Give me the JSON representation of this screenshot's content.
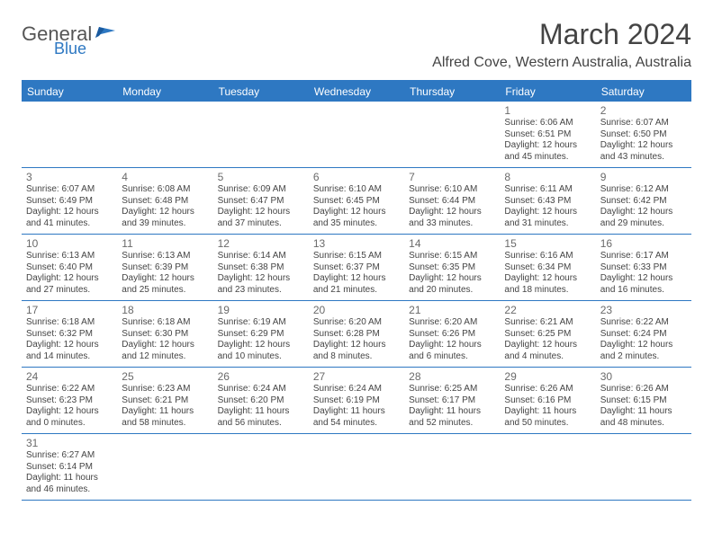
{
  "logo": {
    "name": "General",
    "sub": "Blue"
  },
  "title": "March 2024",
  "location": "Alfred Cove, Western Australia, Australia",
  "colors": {
    "accent": "#2e78c2",
    "text": "#444",
    "bg": "#ffffff"
  },
  "weekdays": [
    "Sunday",
    "Monday",
    "Tuesday",
    "Wednesday",
    "Thursday",
    "Friday",
    "Saturday"
  ],
  "grid": {
    "weeks": 6,
    "lead_empty": 5,
    "days": [
      {
        "n": "1",
        "sunrise": "6:06 AM",
        "sunset": "6:51 PM",
        "daylight": "12 hours and 45 minutes."
      },
      {
        "n": "2",
        "sunrise": "6:07 AM",
        "sunset": "6:50 PM",
        "daylight": "12 hours and 43 minutes."
      },
      {
        "n": "3",
        "sunrise": "6:07 AM",
        "sunset": "6:49 PM",
        "daylight": "12 hours and 41 minutes."
      },
      {
        "n": "4",
        "sunrise": "6:08 AM",
        "sunset": "6:48 PM",
        "daylight": "12 hours and 39 minutes."
      },
      {
        "n": "5",
        "sunrise": "6:09 AM",
        "sunset": "6:47 PM",
        "daylight": "12 hours and 37 minutes."
      },
      {
        "n": "6",
        "sunrise": "6:10 AM",
        "sunset": "6:45 PM",
        "daylight": "12 hours and 35 minutes."
      },
      {
        "n": "7",
        "sunrise": "6:10 AM",
        "sunset": "6:44 PM",
        "daylight": "12 hours and 33 minutes."
      },
      {
        "n": "8",
        "sunrise": "6:11 AM",
        "sunset": "6:43 PM",
        "daylight": "12 hours and 31 minutes."
      },
      {
        "n": "9",
        "sunrise": "6:12 AM",
        "sunset": "6:42 PM",
        "daylight": "12 hours and 29 minutes."
      },
      {
        "n": "10",
        "sunrise": "6:13 AM",
        "sunset": "6:40 PM",
        "daylight": "12 hours and 27 minutes."
      },
      {
        "n": "11",
        "sunrise": "6:13 AM",
        "sunset": "6:39 PM",
        "daylight": "12 hours and 25 minutes."
      },
      {
        "n": "12",
        "sunrise": "6:14 AM",
        "sunset": "6:38 PM",
        "daylight": "12 hours and 23 minutes."
      },
      {
        "n": "13",
        "sunrise": "6:15 AM",
        "sunset": "6:37 PM",
        "daylight": "12 hours and 21 minutes."
      },
      {
        "n": "14",
        "sunrise": "6:15 AM",
        "sunset": "6:35 PM",
        "daylight": "12 hours and 20 minutes."
      },
      {
        "n": "15",
        "sunrise": "6:16 AM",
        "sunset": "6:34 PM",
        "daylight": "12 hours and 18 minutes."
      },
      {
        "n": "16",
        "sunrise": "6:17 AM",
        "sunset": "6:33 PM",
        "daylight": "12 hours and 16 minutes."
      },
      {
        "n": "17",
        "sunrise": "6:18 AM",
        "sunset": "6:32 PM",
        "daylight": "12 hours and 14 minutes."
      },
      {
        "n": "18",
        "sunrise": "6:18 AM",
        "sunset": "6:30 PM",
        "daylight": "12 hours and 12 minutes."
      },
      {
        "n": "19",
        "sunrise": "6:19 AM",
        "sunset": "6:29 PM",
        "daylight": "12 hours and 10 minutes."
      },
      {
        "n": "20",
        "sunrise": "6:20 AM",
        "sunset": "6:28 PM",
        "daylight": "12 hours and 8 minutes."
      },
      {
        "n": "21",
        "sunrise": "6:20 AM",
        "sunset": "6:26 PM",
        "daylight": "12 hours and 6 minutes."
      },
      {
        "n": "22",
        "sunrise": "6:21 AM",
        "sunset": "6:25 PM",
        "daylight": "12 hours and 4 minutes."
      },
      {
        "n": "23",
        "sunrise": "6:22 AM",
        "sunset": "6:24 PM",
        "daylight": "12 hours and 2 minutes."
      },
      {
        "n": "24",
        "sunrise": "6:22 AM",
        "sunset": "6:23 PM",
        "daylight": "12 hours and 0 minutes."
      },
      {
        "n": "25",
        "sunrise": "6:23 AM",
        "sunset": "6:21 PM",
        "daylight": "11 hours and 58 minutes."
      },
      {
        "n": "26",
        "sunrise": "6:24 AM",
        "sunset": "6:20 PM",
        "daylight": "11 hours and 56 minutes."
      },
      {
        "n": "27",
        "sunrise": "6:24 AM",
        "sunset": "6:19 PM",
        "daylight": "11 hours and 54 minutes."
      },
      {
        "n": "28",
        "sunrise": "6:25 AM",
        "sunset": "6:17 PM",
        "daylight": "11 hours and 52 minutes."
      },
      {
        "n": "29",
        "sunrise": "6:26 AM",
        "sunset": "6:16 PM",
        "daylight": "11 hours and 50 minutes."
      },
      {
        "n": "30",
        "sunrise": "6:26 AM",
        "sunset": "6:15 PM",
        "daylight": "11 hours and 48 minutes."
      },
      {
        "n": "31",
        "sunrise": "6:27 AM",
        "sunset": "6:14 PM",
        "daylight": "11 hours and 46 minutes."
      }
    ]
  },
  "labels": {
    "sunrise": "Sunrise:",
    "sunset": "Sunset:",
    "daylight": "Daylight:"
  }
}
